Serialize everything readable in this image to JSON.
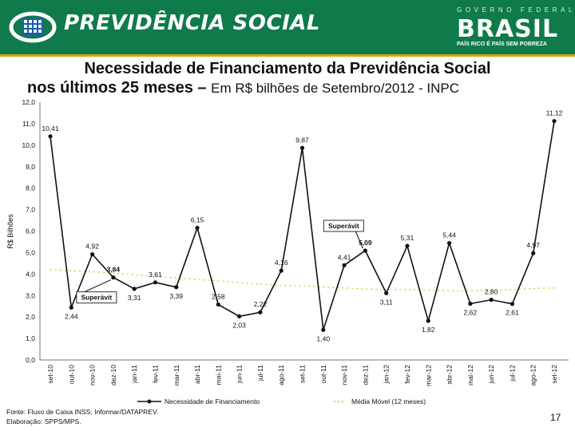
{
  "header": {
    "brand": "PREVIDÊNCIA SOCIAL",
    "gov_top": "GOVERNO FEDERAL",
    "gov_word": "BRASIL",
    "gov_slogan": "PAÍS RICO É PAÍS SEM POBREZA",
    "colors": {
      "bar": "#0f7a4a",
      "accent": "#d9a400"
    }
  },
  "title": {
    "line1": "Necessidade de Financiamento da Previdência Social",
    "line2_bold": "nos últimos 25 meses – ",
    "line2_normal": "Em R$ bilhões de Setembro/2012 - INPC"
  },
  "chart_data": {
    "type": "line",
    "ylabel": "R$ Bilhões",
    "ylim": [
      0,
      12
    ],
    "yticks": [
      "0,0",
      "1,0",
      "2,0",
      "3,0",
      "4,0",
      "5,0",
      "6,0",
      "7,0",
      "8,0",
      "9,0",
      "10,0",
      "11,0",
      "12,0"
    ],
    "categories": [
      "set-10",
      "out-10",
      "nov-10",
      "dez-10",
      "jan-11",
      "fev-11",
      "mar-11",
      "abr-11",
      "mai-11",
      "jun-11",
      "jul-11",
      "ago-11",
      "set-11",
      "out-11",
      "nov-11",
      "dez-11",
      "jan-12",
      "fev-12",
      "mar-12",
      "abr-12",
      "mai-12",
      "jun-12",
      "jul-12",
      "ago-12",
      "set-12"
    ],
    "series": [
      {
        "name": "Necessidade de Financiamento",
        "values": [
          10.41,
          2.44,
          4.92,
          3.84,
          3.31,
          3.61,
          3.39,
          6.15,
          2.58,
          2.03,
          2.22,
          4.16,
          9.87,
          1.4,
          4.41,
          5.09,
          3.11,
          5.31,
          1.82,
          5.44,
          2.62,
          2.8,
          2.61,
          4.97,
          11.12
        ],
        "labels": [
          "10,41",
          "2,44",
          "4,92",
          "3,84",
          "3,31",
          "3,61",
          "3,39",
          "6,15",
          "2,58",
          "2,03",
          "2,22",
          "4,16",
          "9,87",
          "1,40",
          "4,41",
          "5,09",
          "3,11",
          "5,31",
          "1,82",
          "5,44",
          "2,62",
          "2,80",
          "2,61",
          "4,97",
          "11,12"
        ],
        "color": "#111111"
      },
      {
        "name": "Média Móvel (12 meses)",
        "values": [
          4.2,
          4.15,
          4.1,
          4.05,
          3.97,
          3.9,
          3.82,
          3.75,
          3.68,
          3.6,
          3.53,
          3.47,
          3.45,
          3.4,
          3.35,
          3.3,
          3.28,
          3.28,
          3.25,
          3.22,
          3.22,
          3.25,
          3.27,
          3.33,
          3.35
        ],
        "color": "#d8cf4a"
      }
    ],
    "annotations": [
      {
        "text": "Superávit",
        "x": "dez-10",
        "y": 3.84,
        "highlight_color": "#1a8a2a"
      },
      {
        "text": "Superávit",
        "x": "dez-11",
        "y": 5.09,
        "highlight_color": "#1a8a2a"
      }
    ],
    "legend_position": "bottom"
  },
  "footer": {
    "source": "Fonte: Fluxo de Caixa INSS; Informar/DATAPREV.",
    "elaboration": "Elaboração: SPPS/MPS."
  },
  "page_number": "17"
}
